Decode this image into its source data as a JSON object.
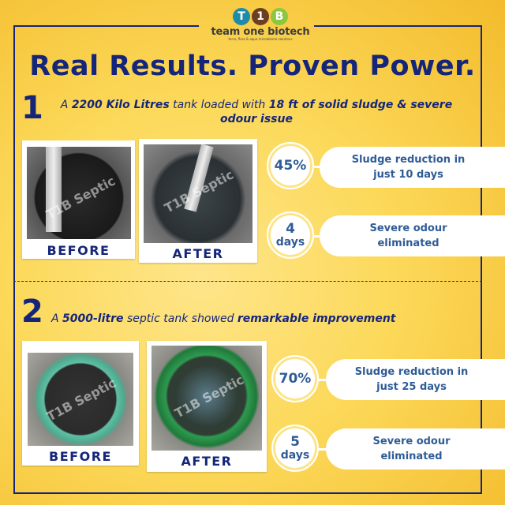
{
  "logo": {
    "letters": [
      "T",
      "1",
      "B"
    ],
    "colors": [
      "#1e8ca8",
      "#6b3f1f",
      "#8dc63f"
    ],
    "name": "team one biotech",
    "tagline": "terra, flora & aqua microbiome solutions"
  },
  "title": "Real Results. Proven Power.",
  "cases": [
    {
      "number": "1",
      "description": {
        "a": "A ",
        "b1": "2200 Kilo Litres",
        "c": " tank loaded with ",
        "b2": "18 ft of solid sludge & severe odour issue"
      },
      "before_label": "BEFORE",
      "after_label": "AFTER",
      "watermark": "T1B Septic",
      "stats": [
        {
          "value": "45%",
          "unit": "",
          "text": "Sludge reduction in just 10 days"
        },
        {
          "value": "4",
          "unit": "days",
          "text": "Severe odour eliminated"
        }
      ]
    },
    {
      "number": "2",
      "description": {
        "a": "A ",
        "b1": "5000-litre",
        "c": " septic tank showed ",
        "b2": "remarkable improvement"
      },
      "before_label": "BEFORE",
      "after_label": "AFTER",
      "watermark": "T1B Septic",
      "stats": [
        {
          "value": "70%",
          "unit": "",
          "text": "Sludge reduction in just 25 days"
        },
        {
          "value": "5",
          "unit": "days",
          "text": "Severe odour eliminated"
        }
      ]
    }
  ],
  "colors": {
    "navy": "#15267a",
    "stat_blue": "#2f5c96",
    "background": "#fcd95a"
  }
}
